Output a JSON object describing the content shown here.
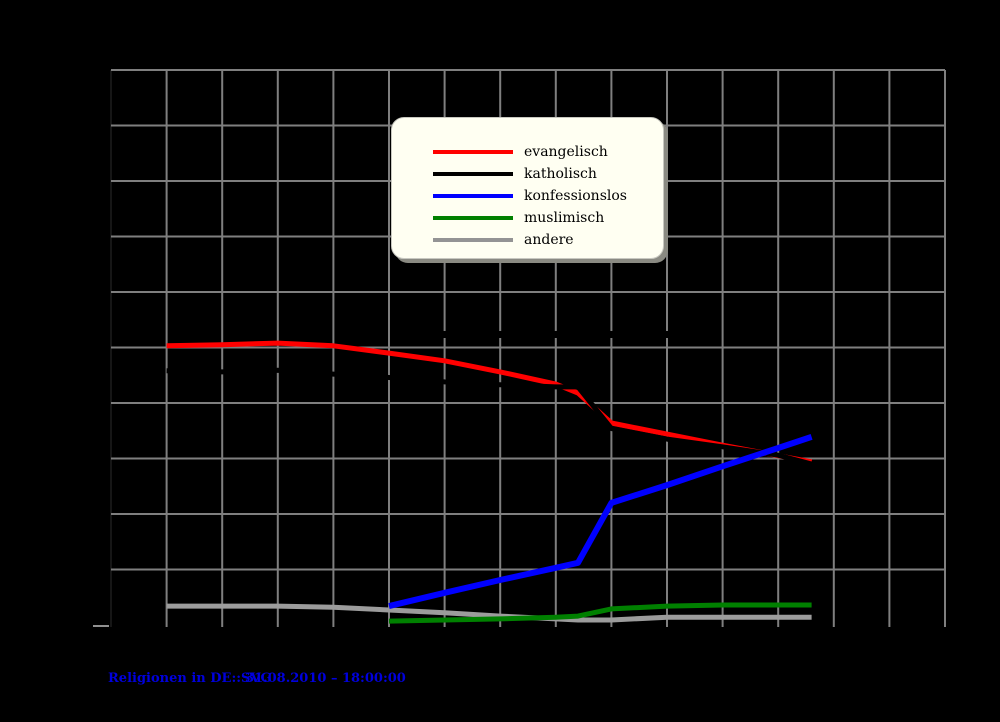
{
  "page": {
    "background_color": "#000000"
  },
  "legend": {
    "items": [
      {
        "label": "evangelisch",
        "color": "#ff0000"
      },
      {
        "label": "katholisch",
        "color": "#000000"
      },
      {
        "label": "konfessionslos",
        "color": "#0000ff"
      },
      {
        "label": "muslimisch",
        "color": "#008000"
      },
      {
        "label": "andere",
        "color": "#949494"
      }
    ]
  },
  "footer": {
    "links": [
      {
        "text": "Religionen in DE::SVG"
      },
      {
        "text": "31.08.2010 – 18:00:00"
      }
    ],
    "link_color": "#0000dd"
  },
  "chart_data": {
    "type": "line",
    "title": "",
    "xlabel": "",
    "ylabel": "",
    "x": [
      1950,
      1955,
      1960,
      1965,
      1970,
      1975,
      1980,
      1985,
      1987,
      1990,
      1995,
      2000,
      2005,
      2008
    ],
    "series": [
      {
        "name": "evangelisch",
        "color": "#ff0000",
        "values": [
          50.3,
          50.5,
          50.8,
          50.3,
          49.0,
          47.6,
          45.6,
          43.4,
          41.8,
          36.4,
          34.4,
          32.4,
          30.5,
          29.4
        ]
      },
      {
        "name": "katholisch",
        "color": "#000000",
        "values": [
          45.8,
          45.6,
          45.9,
          45.2,
          44.6,
          43.8,
          43.3,
          42.9,
          42.9,
          35.4,
          33.5,
          32.1,
          30.6,
          29.0
        ]
      },
      {
        "name": "konfessionslos",
        "color": "#0000ff",
        "values": [
          null,
          null,
          null,
          null,
          3.4,
          5.8,
          8.1,
          10.3,
          11.2,
          22.0,
          25.2,
          28.6,
          31.9,
          33.9
        ]
      },
      {
        "name": "muslimisch",
        "color": "#008000",
        "values": [
          null,
          null,
          null,
          null,
          0.7,
          0.9,
          1.1,
          1.4,
          1.6,
          2.9,
          3.4,
          3.6,
          3.6,
          3.6
        ]
      },
      {
        "name": "andere",
        "color": "#9c9c9c",
        "values": [
          3.4,
          3.4,
          3.4,
          3.2,
          2.7,
          2.2,
          1.6,
          1.1,
          0.9,
          0.9,
          1.4,
          1.4,
          1.4,
          1.4
        ]
      }
    ],
    "xlim": [
      1945,
      2020
    ],
    "x_gridline_step": 5,
    "ylim": [
      0,
      100
    ],
    "y_gridline_step": 10,
    "grid": true,
    "gridline_color": "#7f7f7f",
    "axis_tick_labels_visible": false,
    "legend_position": "upper-center"
  }
}
